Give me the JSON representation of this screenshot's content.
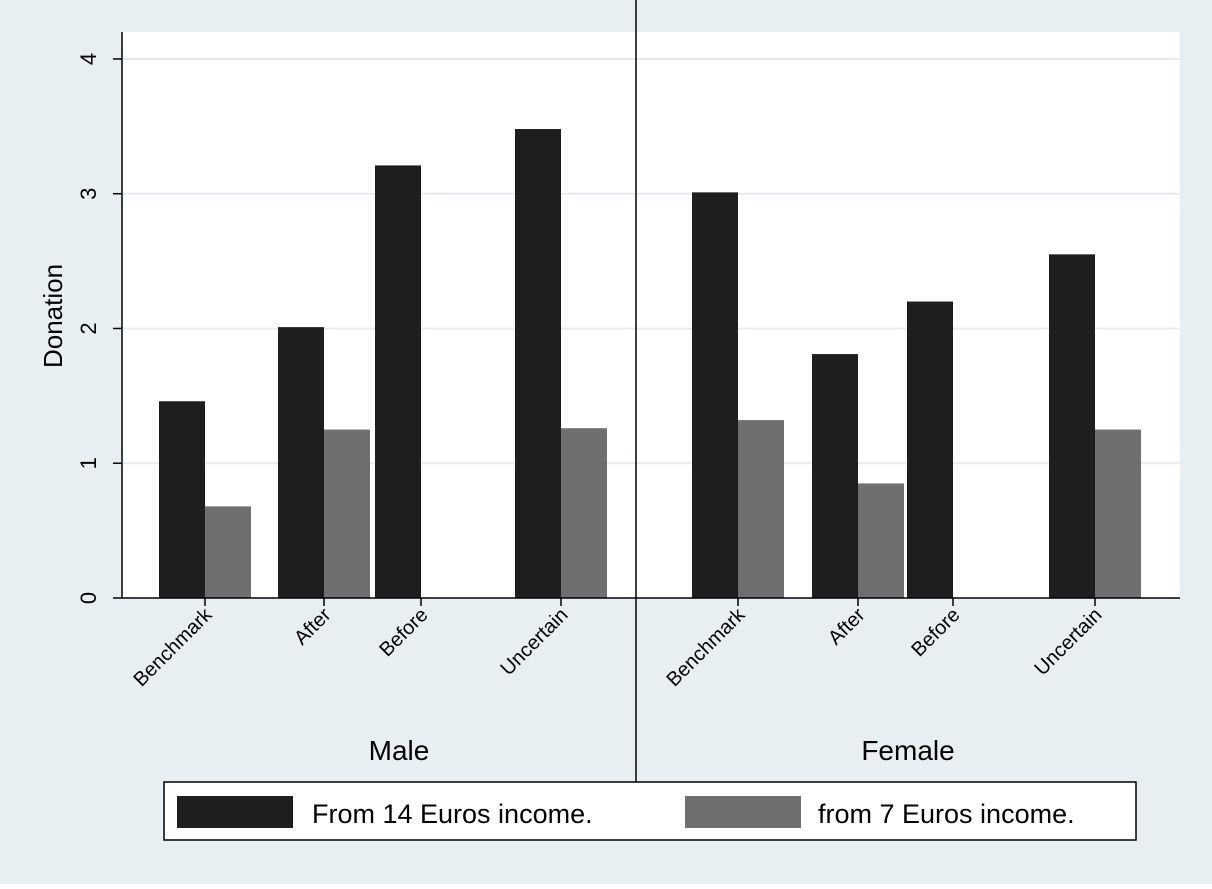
{
  "chart_data": {
    "type": "bar",
    "ylabel": "Donation",
    "ylim": [
      0,
      4.2
    ],
    "yticks": [
      0,
      1,
      2,
      3,
      4
    ],
    "grid": true,
    "legend_position": "bottom",
    "panels": [
      {
        "label": "Male",
        "categories": [
          "Benchmark",
          "After",
          "Before",
          "Uncertain"
        ],
        "series": [
          {
            "name": "From 14 Euros income.",
            "color": "#1e1e1e",
            "values": [
              1.46,
              2.01,
              3.21,
              3.48
            ]
          },
          {
            "name": "from 7 Euros income.",
            "color": "#6f6f6f",
            "values": [
              0.68,
              1.25,
              null,
              1.26
            ]
          }
        ]
      },
      {
        "label": "Female",
        "categories": [
          "Benchmark",
          "After",
          "Before",
          "Uncertain"
        ],
        "series": [
          {
            "name": "From 14 Euros income.",
            "color": "#1e1e1e",
            "values": [
              3.01,
              1.81,
              2.2,
              2.55
            ]
          },
          {
            "name": "from 7 Euros income.",
            "color": "#6f6f6f",
            "values": [
              1.32,
              0.85,
              null,
              1.25
            ]
          }
        ]
      }
    ],
    "colors": {
      "background": "#e8eff2",
      "plot_area": "#ffffff",
      "grid": "#e4ecef",
      "axis": "#000000"
    }
  }
}
